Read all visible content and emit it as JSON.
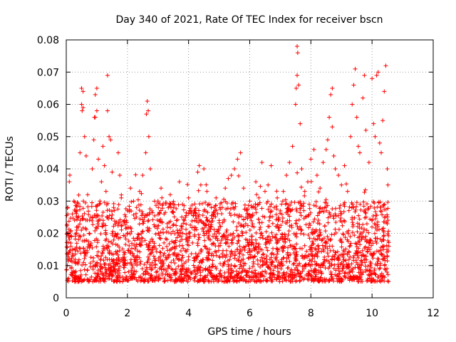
{
  "chart_data": {
    "type": "scatter",
    "title": "Day 340 of 2021, Rate Of TEC Index for receiver bscn",
    "xlabel": "GPS time / hours",
    "ylabel": "ROTI / TECUs",
    "xlim": [
      0,
      12
    ],
    "ylim": [
      0,
      0.08
    ],
    "x_ticks": [
      0,
      2,
      4,
      6,
      8,
      10,
      12
    ],
    "y_ticks": [
      0,
      0.01,
      0.02,
      0.03,
      0.04,
      0.05,
      0.06,
      0.07,
      0.08
    ],
    "x_tick_labels": [
      "0",
      "2",
      "4",
      "6",
      "8",
      "10",
      "12"
    ],
    "y_tick_labels": [
      "0",
      "0.01",
      "0.02",
      "0.03",
      "0.04",
      "0.05",
      "0.06",
      "0.07",
      "0.08"
    ],
    "grid": true,
    "marker": "+",
    "marker_color": "#ff0000",
    "data_x_range": [
      0,
      10.55
    ],
    "series": [
      {
        "points": [
          [
            0.05,
            0.012
          ],
          [
            0.05,
            0.026
          ],
          [
            0.1,
            0.036
          ],
          [
            0.15,
            0.016
          ],
          [
            0.2,
            0.007
          ],
          [
            0.25,
            0.03
          ],
          [
            0.3,
            0.011
          ],
          [
            0.35,
            0.006
          ],
          [
            0.4,
            0.022
          ],
          [
            0.45,
            0.045
          ],
          [
            0.5,
            0.065
          ],
          [
            0.5,
            0.06
          ],
          [
            0.52,
            0.058
          ],
          [
            0.55,
            0.064
          ],
          [
            0.55,
            0.059
          ],
          [
            0.6,
            0.05
          ],
          [
            0.65,
            0.044
          ],
          [
            0.7,
            0.032
          ],
          [
            0.75,
            0.02
          ],
          [
            0.8,
            0.025
          ],
          [
            0.85,
            0.04
          ],
          [
            0.9,
            0.049
          ],
          [
            0.92,
            0.056
          ],
          [
            0.95,
            0.063
          ],
          [
            0.95,
            0.056
          ],
          [
            1.0,
            0.065
          ],
          [
            1.0,
            0.058
          ],
          [
            1.05,
            0.043
          ],
          [
            1.1,
            0.03
          ],
          [
            1.15,
            0.036
          ],
          [
            1.2,
            0.047
          ],
          [
            1.25,
            0.041
          ],
          [
            1.3,
            0.033
          ],
          [
            1.35,
            0.069
          ],
          [
            1.35,
            0.058
          ],
          [
            1.4,
            0.05
          ],
          [
            1.45,
            0.049
          ],
          [
            1.5,
            0.039
          ],
          [
            1.55,
            0.028
          ],
          [
            1.6,
            0.02
          ],
          [
            1.7,
            0.045
          ],
          [
            1.75,
            0.038
          ],
          [
            1.8,
            0.031
          ],
          [
            1.9,
            0.024
          ],
          [
            2.0,
            0.027
          ],
          [
            2.1,
            0.034
          ],
          [
            2.2,
            0.03
          ],
          [
            2.3,
            0.028
          ],
          [
            2.4,
            0.033
          ],
          [
            2.5,
            0.038
          ],
          [
            2.6,
            0.045
          ],
          [
            2.62,
            0.057
          ],
          [
            2.65,
            0.061
          ],
          [
            2.68,
            0.058
          ],
          [
            2.7,
            0.05
          ],
          [
            2.75,
            0.04
          ],
          [
            2.8,
            0.027
          ],
          [
            2.9,
            0.022
          ],
          [
            3.0,
            0.03
          ],
          [
            3.1,
            0.034
          ],
          [
            3.2,
            0.026
          ],
          [
            3.3,
            0.023
          ],
          [
            3.4,
            0.032
          ],
          [
            3.5,
            0.028
          ],
          [
            3.6,
            0.024
          ],
          [
            3.7,
            0.036
          ],
          [
            3.8,
            0.029
          ],
          [
            3.9,
            0.025
          ],
          [
            4.0,
            0.031
          ],
          [
            4.1,
            0.027
          ],
          [
            4.2,
            0.024
          ],
          [
            4.3,
            0.039
          ],
          [
            4.35,
            0.041
          ],
          [
            4.4,
            0.035
          ],
          [
            4.5,
            0.04
          ],
          [
            4.6,
            0.033
          ],
          [
            4.7,
            0.029
          ],
          [
            4.8,
            0.026
          ],
          [
            4.9,
            0.031
          ],
          [
            5.0,
            0.024
          ],
          [
            5.1,
            0.028
          ],
          [
            5.2,
            0.034
          ],
          [
            5.3,
            0.037
          ],
          [
            5.4,
            0.038
          ],
          [
            5.5,
            0.04
          ],
          [
            5.6,
            0.043
          ],
          [
            5.7,
            0.045
          ],
          [
            5.8,
            0.034
          ],
          [
            5.9,
            0.027
          ],
          [
            6.0,
            0.03
          ],
          [
            6.1,
            0.026
          ],
          [
            6.2,
            0.036
          ],
          [
            6.3,
            0.031
          ],
          [
            6.4,
            0.042
          ],
          [
            6.5,
            0.033
          ],
          [
            6.6,
            0.035
          ],
          [
            6.7,
            0.041
          ],
          [
            6.8,
            0.028
          ],
          [
            6.9,
            0.031
          ],
          [
            7.0,
            0.027
          ],
          [
            7.1,
            0.033
          ],
          [
            7.2,
            0.038
          ],
          [
            7.3,
            0.042
          ],
          [
            7.4,
            0.047
          ],
          [
            7.5,
            0.06
          ],
          [
            7.52,
            0.065
          ],
          [
            7.55,
            0.069
          ],
          [
            7.55,
            0.078
          ],
          [
            7.57,
            0.076
          ],
          [
            7.6,
            0.066
          ],
          [
            7.65,
            0.054
          ],
          [
            7.7,
            0.04
          ],
          [
            7.8,
            0.033
          ],
          [
            7.9,
            0.036
          ],
          [
            8.0,
            0.043
          ],
          [
            8.1,
            0.046
          ],
          [
            8.2,
            0.038
          ],
          [
            8.3,
            0.034
          ],
          [
            8.4,
            0.042
          ],
          [
            8.5,
            0.046
          ],
          [
            8.55,
            0.049
          ],
          [
            8.6,
            0.056
          ],
          [
            8.65,
            0.063
          ],
          [
            8.7,
            0.065
          ],
          [
            8.7,
            0.053
          ],
          [
            8.75,
            0.044
          ],
          [
            8.8,
            0.04
          ],
          [
            8.9,
            0.038
          ],
          [
            9.0,
            0.035
          ],
          [
            9.1,
            0.041
          ],
          [
            9.2,
            0.033
          ],
          [
            9.3,
            0.05
          ],
          [
            9.35,
            0.06
          ],
          [
            9.4,
            0.066
          ],
          [
            9.45,
            0.071
          ],
          [
            9.5,
            0.056
          ],
          [
            9.55,
            0.047
          ],
          [
            9.6,
            0.045
          ],
          [
            9.7,
            0.062
          ],
          [
            9.75,
            0.069
          ],
          [
            9.8,
            0.052
          ],
          [
            9.9,
            0.042
          ],
          [
            10.0,
            0.068
          ],
          [
            10.05,
            0.054
          ],
          [
            10.1,
            0.05
          ],
          [
            10.15,
            0.069
          ],
          [
            10.2,
            0.07
          ],
          [
            10.25,
            0.048
          ],
          [
            10.3,
            0.045
          ],
          [
            10.35,
            0.055
          ],
          [
            10.4,
            0.064
          ],
          [
            10.45,
            0.072
          ],
          [
            10.5,
            0.04
          ],
          [
            10.52,
            0.035
          ],
          [
            10.55,
            0.016
          ]
        ],
        "baseline_min": 0.005,
        "baseline_max": 0.03
      }
    ]
  }
}
